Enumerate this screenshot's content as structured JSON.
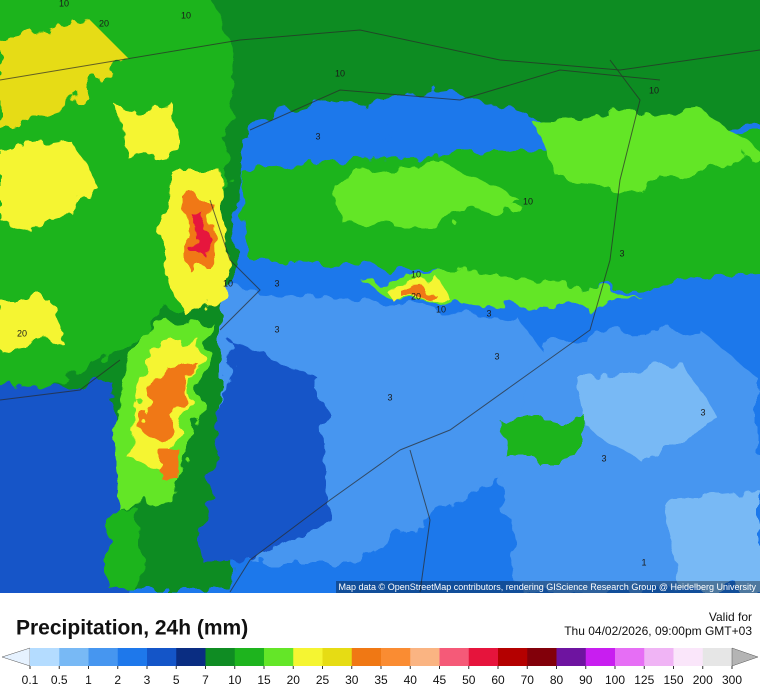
{
  "map": {
    "attribution": "Map data © OpenStreetMap contributors, rendering GIScience Research Group @ Heidelberg University",
    "contour_labels": [
      10,
      20,
      10,
      10,
      3,
      10,
      10,
      3,
      10,
      3,
      20,
      10,
      3,
      3,
      3,
      10,
      3,
      3,
      20,
      3,
      1
    ]
  },
  "header": {
    "title": "Precipitation, 24h (mm)",
    "valid_label": "Valid for",
    "valid_time": "Thu 04/02/2026, 09:00pm GMT+03"
  },
  "colorbar": {
    "labels": [
      0.1,
      0.5,
      1,
      2,
      3,
      5,
      7,
      10,
      15,
      20,
      25,
      30,
      35,
      40,
      45,
      50,
      60,
      70,
      80,
      90,
      100,
      125,
      150,
      200,
      300
    ],
    "below_color": "#e6f2ff",
    "colors": [
      "#b4dcff",
      "#78b9f5",
      "#4696f0",
      "#1e78eb",
      "#1455c8",
      "#0a2d82",
      "#0f8c23",
      "#1eb41e",
      "#64e628",
      "#f5f532",
      "#e6dc14",
      "#f07814",
      "#fa8c32",
      "#fab482",
      "#f55a78",
      "#e6143c",
      "#b40000",
      "#82000a",
      "#6e14a0",
      "#c81ef0",
      "#e66ef5",
      "#f0b4f5",
      "#fae6fa",
      "#e6e6e6"
    ],
    "above_color": "#b4b4b4"
  }
}
